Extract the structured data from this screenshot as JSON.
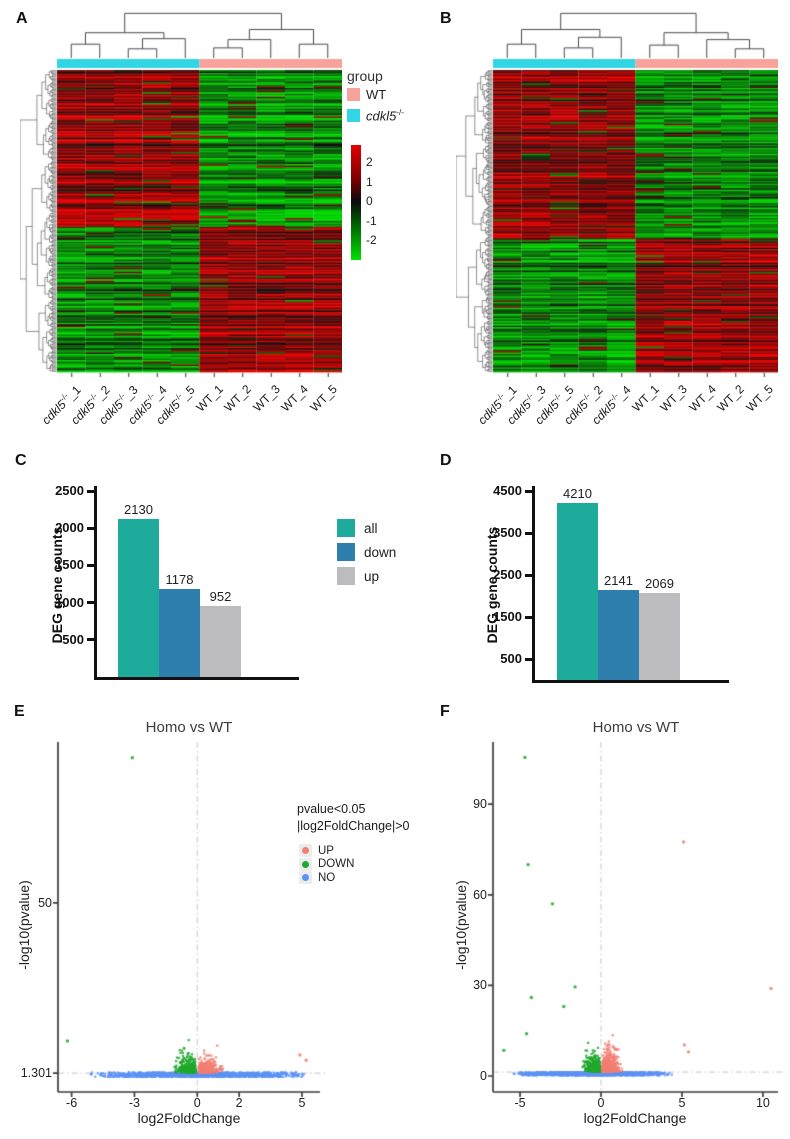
{
  "colors": {
    "wt_pink": "#F8A29C",
    "ko_cyan": "#31D5E4",
    "heat_max_red": "#E00000",
    "heat_min_green": "#00DC00",
    "bar_all": "#1FAB9B",
    "bar_down": "#2E7FAD",
    "bar_up": "#BCBCBE",
    "volcano_up": "#F37E72",
    "volcano_down": "#21A82E",
    "volcano_no": "#5C92F5",
    "dash_line": "#C6C6C6",
    "axis_dark": "#3D3D3D"
  },
  "chart_data": [
    {
      "panel_label": "A",
      "type": "heatmap",
      "samples": [
        {
          "gene": "cdkl5",
          "sup": "-/-",
          "suffix": "_1"
        },
        {
          "gene": "cdkl5",
          "sup": "-/-",
          "suffix": "_2"
        },
        {
          "gene": "cdkl5",
          "sup": "-/-",
          "suffix": "_3"
        },
        {
          "gene": "cdkl5",
          "sup": "-/-",
          "suffix": "_4"
        },
        {
          "gene": "cdkl5",
          "sup": "-/-",
          "suffix": "_5"
        },
        {
          "gene": "WT",
          "sup": "",
          "suffix": "_1"
        },
        {
          "gene": "WT",
          "sup": "",
          "suffix": "_2"
        },
        {
          "gene": "WT",
          "sup": "",
          "suffix": "_3"
        },
        {
          "gene": "WT",
          "sup": "",
          "suffix": "_4"
        },
        {
          "gene": "WT",
          "sup": "",
          "suffix": "_5"
        }
      ],
      "groups": {
        "title": "group",
        "items": [
          {
            "label": "WT",
            "sup": "",
            "italic": false,
            "color": "#F8A29C"
          },
          {
            "label": "cdkl5",
            "sup": "-/-",
            "italic": true,
            "color": "#31D5E4"
          }
        ]
      },
      "colorbar_ticks": [
        "2",
        "1",
        "0",
        "-1",
        "-2"
      ],
      "col_annotation": [
        "ko",
        "ko",
        "ko",
        "ko",
        "ko",
        "wt",
        "wt",
        "wt",
        "wt",
        "wt"
      ],
      "expression_pattern": [
        {
          "row_frac": 0.52,
          "ko": "high",
          "wt": "low"
        },
        {
          "row_frac": 0.48,
          "ko": "low",
          "wt": "high"
        }
      ]
    },
    {
      "panel_label": "B",
      "type": "heatmap",
      "samples": [
        {
          "gene": "cdkl5",
          "sup": "-/-",
          "suffix": "_1"
        },
        {
          "gene": "cdkl5",
          "sup": "-/-",
          "suffix": "_3"
        },
        {
          "gene": "cdkl5",
          "sup": "-/-",
          "suffix": "_5"
        },
        {
          "gene": "cdkl5",
          "sup": "-/-",
          "suffix": "_2"
        },
        {
          "gene": "cdkl5",
          "sup": "-/-",
          "suffix": "_4"
        },
        {
          "gene": "WT",
          "sup": "",
          "suffix": "_1"
        },
        {
          "gene": "WT",
          "sup": "",
          "suffix": "_3"
        },
        {
          "gene": "WT",
          "sup": "",
          "suffix": "_4"
        },
        {
          "gene": "WT",
          "sup": "",
          "suffix": "_2"
        },
        {
          "gene": "WT",
          "sup": "",
          "suffix": "_5"
        }
      ],
      "col_annotation": [
        "ko",
        "ko",
        "ko",
        "ko",
        "ko",
        "wt",
        "wt",
        "wt",
        "wt",
        "wt"
      ],
      "expression_pattern": [
        {
          "row_frac": 0.56,
          "ko": "high",
          "wt": "low"
        },
        {
          "row_frac": 0.44,
          "ko": "low",
          "wt": "high"
        }
      ]
    },
    {
      "panel_label": "C",
      "type": "bar",
      "ylabel": "DEG gene counts",
      "categories": [
        "all",
        "down",
        "up"
      ],
      "values": [
        2130,
        1178,
        952
      ],
      "value_labels": [
        "2130",
        "1178",
        "952"
      ],
      "yticks": [
        2500,
        2000,
        1500,
        1000,
        500
      ],
      "ylim": [
        0,
        2500
      ],
      "legend": [
        {
          "label": "all"
        },
        {
          "label": "down"
        },
        {
          "label": "up"
        }
      ]
    },
    {
      "panel_label": "D",
      "type": "bar",
      "ylabel": "DEG gene counts",
      "categories": [
        "all",
        "down",
        "up"
      ],
      "values": [
        4210,
        2141,
        2069
      ],
      "value_labels": [
        "4210",
        "2141",
        "2069"
      ],
      "yticks": [
        4500,
        3500,
        2500,
        1500,
        500
      ],
      "ylim": [
        0,
        4500
      ]
    },
    {
      "panel_label": "E",
      "type": "scatter",
      "title": "Homo vs WT",
      "xlabel": "log2FoldChange",
      "ylabel": "-log10(pvalue)",
      "xticks": [
        -6,
        -3,
        0,
        2,
        5
      ],
      "ytick_labels": [
        "1.301",
        "50"
      ],
      "ytick_values": [
        1.301,
        50
      ],
      "xlim": [
        -6.65,
        5.86
      ],
      "ylim": [
        -4.1,
        96
      ],
      "threshold": {
        "vline": 0,
        "hline": 1.301
      },
      "legend": {
        "title": [
          "pvalue<0.05",
          "|log2FoldChange|>0"
        ],
        "items": [
          {
            "label": "UP",
            "color": "#F37E72"
          },
          {
            "label": "DOWN",
            "color": "#21A82E"
          },
          {
            "label": "NO",
            "color": "#5C92F5"
          }
        ]
      },
      "clouds": [
        {
          "series": "NO",
          "n": 1400,
          "x": [
            -5.2,
            5.3
          ],
          "y": [
            0.2,
            1.5
          ]
        },
        {
          "series": "DOWN",
          "n": 330,
          "x": [
            -5.3,
            -0.08
          ],
          "ymax": 22,
          "spread": 0.85,
          "yscale": 1.5,
          "peak": 0.9
        },
        {
          "series": "UP",
          "n": 330,
          "x": [
            0.08,
            5.3
          ],
          "ymax": 14,
          "spread": 0.85,
          "yscale": 1.3,
          "peak": 0.9
        }
      ],
      "outliers": [
        {
          "x": -3.1,
          "y": 91.5,
          "series": "DOWN"
        },
        {
          "x": -6.2,
          "y": 10.5,
          "series": "DOWN"
        },
        {
          "x": 4.9,
          "y": 6.5,
          "series": "UP"
        },
        {
          "x": 5.2,
          "y": 5,
          "series": "UP"
        }
      ]
    },
    {
      "panel_label": "F",
      "type": "scatter",
      "title": "Homo vs WT",
      "xlabel": "log2FoldChange",
      "ylabel": "-log10(pvalue)",
      "xticks": [
        -5,
        0,
        5,
        10
      ],
      "ytick_labels": [
        "0",
        "30",
        "60",
        "90"
      ],
      "ytick_values": [
        0,
        30,
        60,
        90
      ],
      "xlim": [
        -6.67,
        10.93
      ],
      "ylim": [
        -5.3,
        110.6
      ],
      "threshold": {
        "vline": 0,
        "hline": 1.301
      },
      "clouds": [
        {
          "series": "NO",
          "n": 1600,
          "x": [
            -5.4,
            4.4
          ],
          "y": [
            0.2,
            1.3
          ]
        },
        {
          "series": "DOWN",
          "n": 470,
          "x": [
            -3.9,
            -0.08
          ],
          "ymax": 27,
          "spread": 0.8,
          "yscale": 1.9,
          "peak": 1.1
        },
        {
          "series": "UP",
          "n": 560,
          "x": [
            0.08,
            4.1
          ],
          "ymax": 16,
          "spread": 0.9,
          "yscale": 1.8,
          "peak": 0.9
        }
      ],
      "outliers": [
        {
          "x": -4.7,
          "y": 105.5,
          "series": "DOWN"
        },
        {
          "x": -4.5,
          "y": 70,
          "series": "DOWN"
        },
        {
          "x": -3.0,
          "y": 57,
          "series": "DOWN"
        },
        {
          "x": -4.6,
          "y": 14,
          "series": "DOWN"
        },
        {
          "x": -4.3,
          "y": 26,
          "series": "DOWN"
        },
        {
          "x": -1.6,
          "y": 29.5,
          "series": "DOWN"
        },
        {
          "x": -2.3,
          "y": 23,
          "series": "DOWN"
        },
        {
          "x": -6.0,
          "y": 8.5,
          "series": "DOWN"
        },
        {
          "x": 5.1,
          "y": 77.5,
          "series": "UP"
        },
        {
          "x": 10.5,
          "y": 29,
          "series": "UP"
        },
        {
          "x": 5.15,
          "y": 10.3,
          "series": "UP"
        },
        {
          "x": 5.4,
          "y": 8,
          "series": "UP"
        }
      ]
    }
  ]
}
